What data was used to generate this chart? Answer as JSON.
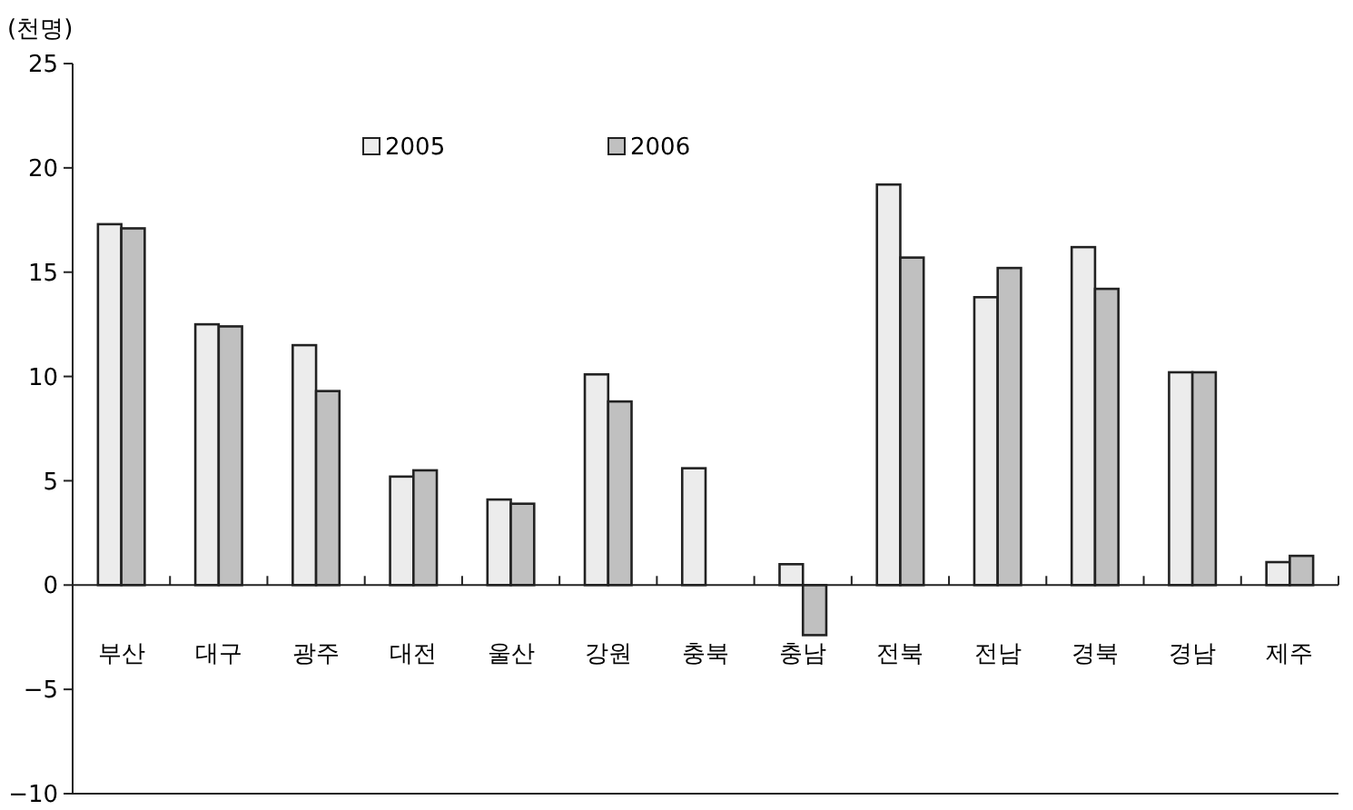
{
  "chart_data": {
    "type": "bar",
    "ylabel": "(천명)",
    "categories": [
      "부산",
      "대구",
      "광주",
      "대전",
      "울산",
      "강원",
      "충북",
      "충남",
      "전북",
      "전남",
      "경북",
      "경남",
      "제주"
    ],
    "series": [
      {
        "name": "2005",
        "color": "#ececec",
        "values": [
          17.3,
          12.5,
          11.5,
          5.2,
          4.1,
          10.1,
          5.6,
          1.0,
          19.2,
          13.8,
          16.2,
          10.2,
          1.1
        ]
      },
      {
        "name": "2006",
        "color": "#c0c0c0",
        "values": [
          17.1,
          12.4,
          9.3,
          5.5,
          3.9,
          8.8,
          null,
          -2.4,
          15.7,
          15.2,
          14.2,
          10.2,
          1.4
        ]
      }
    ],
    "ylim": [
      -10,
      25
    ],
    "yticks": [
      {
        "value": -10,
        "label": "−10"
      },
      {
        "value": -5,
        "label": "−5"
      },
      0,
      5,
      10,
      15,
      20,
      25
    ],
    "legend": "top",
    "grid": false
  }
}
